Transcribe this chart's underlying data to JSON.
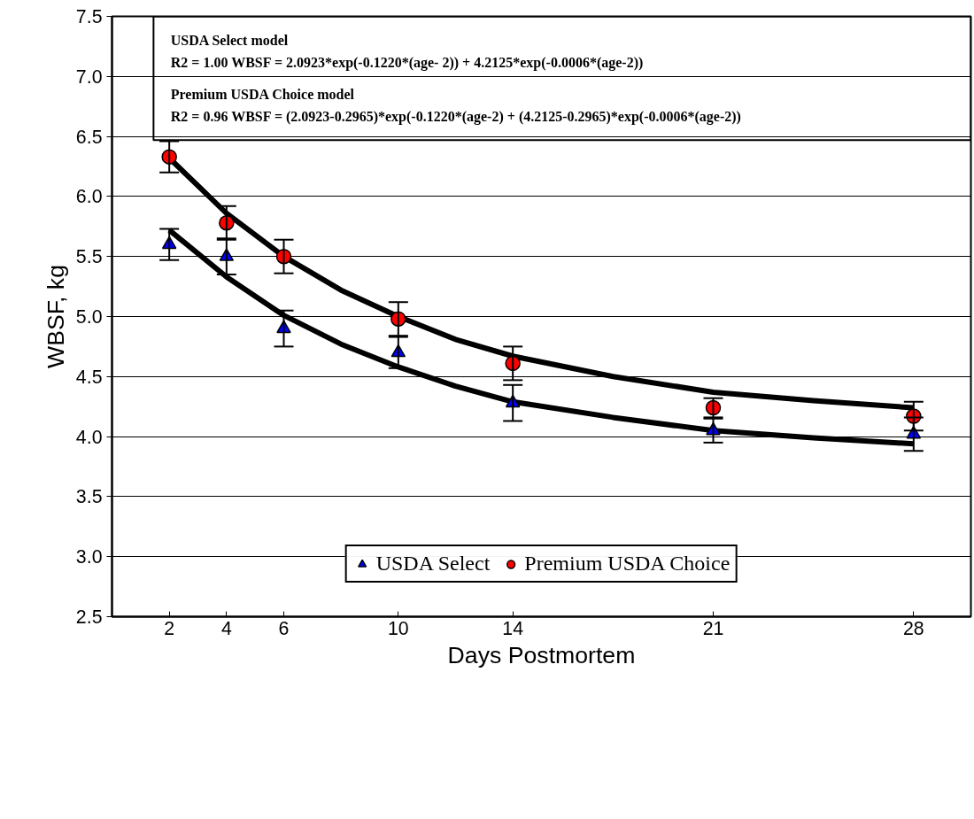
{
  "chart_data": {
    "type": "scatter",
    "xlabel": "Days Postmortem",
    "ylabel": "WBSF, kg",
    "x": [
      2,
      4,
      6,
      10,
      14,
      21,
      28
    ],
    "xlim": [
      0,
      30
    ],
    "xticks": [
      2,
      4,
      6,
      10,
      14,
      21,
      28
    ],
    "ylim": [
      2.5,
      7.5
    ],
    "yticks": [
      2.5,
      {
        "value": 3,
        "label": "3.0"
      },
      3.5,
      {
        "value": 4,
        "label": "4.0"
      },
      4.5,
      {
        "value": 5,
        "label": "5.0"
      },
      5.5,
      {
        "value": 6,
        "label": "6.0"
      },
      6.5,
      {
        "value": 7,
        "label": "7.0"
      },
      7.5
    ],
    "grid": "y",
    "legend": "bottom",
    "annotations": [
      "USDA Select model",
      "R2 = 1.00    WBSF = 2.0923*exp(-0.1220*(age- 2)) + 4.2125*exp(-0.0006*(age-2))",
      "Premium USDA Choice model",
      "R2 = 0.96   WBSF = (2.0923-0.2965)*exp(-0.1220*(age-2) + (4.2125-0.2965)*exp(-0.0006*(age-2))"
    ],
    "series": [
      {
        "type": "line",
        "color": "#000000",
        "marker": "none",
        "x": [
          2,
          4,
          6,
          8,
          10,
          12,
          14,
          17.5,
          21,
          24.5,
          28
        ],
        "values": [
          5.72,
          5.33,
          5.01,
          4.77,
          4.58,
          4.42,
          4.29,
          4.16,
          4.05,
          3.99,
          3.94
        ]
      },
      {
        "type": "line",
        "color": "#000000",
        "marker": "none",
        "x": [
          2,
          4,
          6,
          8,
          10,
          12,
          14,
          17.5,
          21,
          24.5,
          28
        ],
        "values": [
          6.32,
          5.86,
          5.5,
          5.22,
          5.0,
          4.81,
          4.67,
          4.5,
          4.37,
          4.3,
          4.24
        ]
      },
      {
        "name": "USDA Select",
        "color": "#0000ff",
        "marker": "triangle",
        "values": [
          5.6,
          5.5,
          4.9,
          4.7,
          4.28,
          4.05,
          4.02
        ],
        "errors": [
          0.13,
          0.15,
          0.15,
          0.13,
          0.15,
          0.1,
          0.14
        ]
      },
      {
        "name": "Premium USDA Choice",
        "color": "#ff0000",
        "marker": "circle",
        "values": [
          6.33,
          5.78,
          5.5,
          4.98,
          4.61,
          4.24,
          4.17
        ],
        "errors": [
          0.13,
          0.14,
          0.14,
          0.14,
          0.14,
          0.08,
          0.12
        ]
      }
    ]
  }
}
